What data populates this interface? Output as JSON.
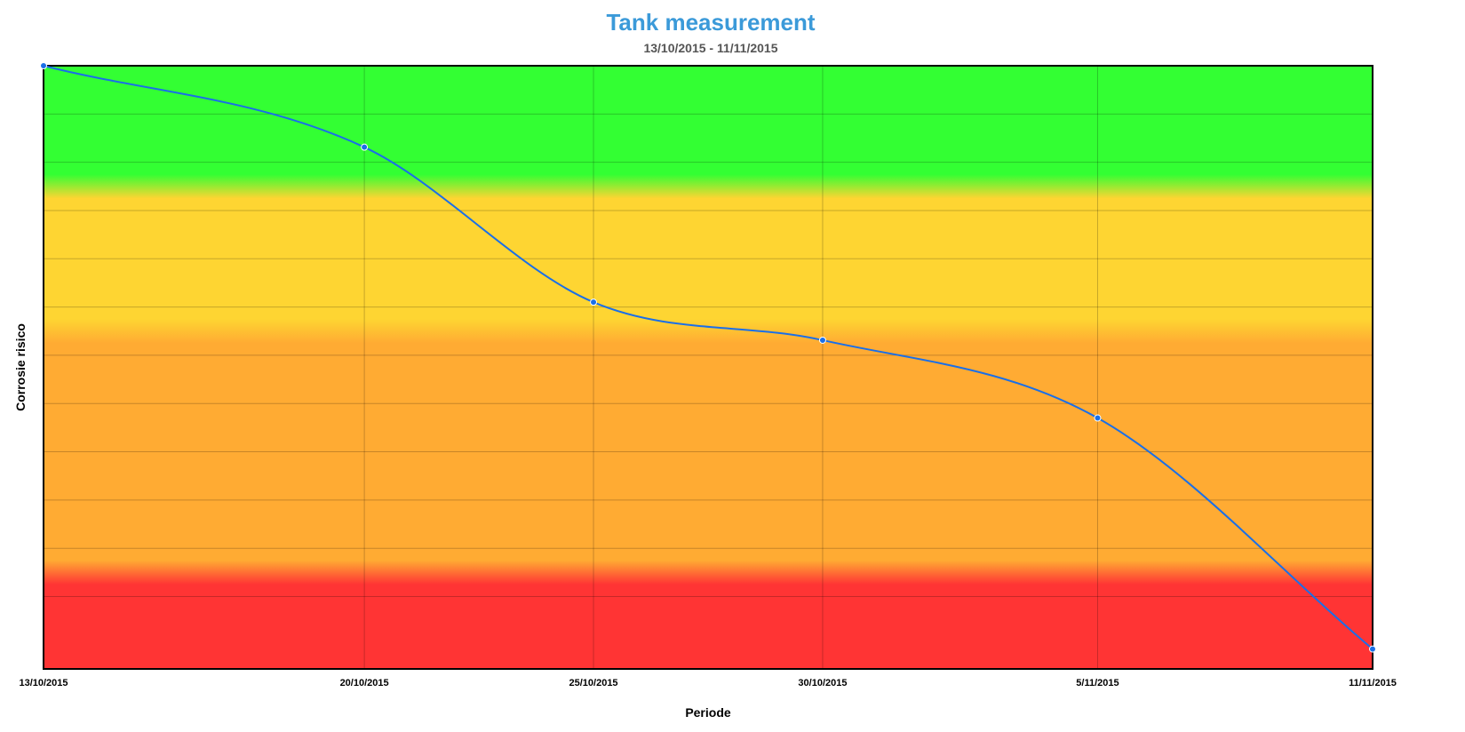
{
  "chart_data": {
    "type": "line",
    "title": "Tank measurement",
    "subtitle": "13/10/2015 - 11/11/2015",
    "xlabel": "Periode",
    "ylabel": "Corrosie risico",
    "x_tick_labels": [
      "13/10/2015",
      "20/10/2015",
      "25/10/2015",
      "30/10/2015",
      "5/11/2015",
      "11/11/2015"
    ],
    "xlim": [
      "13/10/2015",
      "11/11/2015"
    ],
    "ylim": [
      0,
      100
    ],
    "y_tick_labels_shown": false,
    "grid": true,
    "legend": "none",
    "series": [
      {
        "color": "#1a6fe8",
        "smooth": true,
        "points": [
          {
            "x": "13/10/2015",
            "y": 100
          },
          {
            "x": "20/10/2015",
            "y": 86.5
          },
          {
            "x": "25/10/2015",
            "y": 60.8
          },
          {
            "x": "30/10/2015",
            "y": 54.5
          },
          {
            "x": "5/11/2015",
            "y": 41.6
          },
          {
            "x": "11/11/2015",
            "y": 3.3
          }
        ]
      }
    ],
    "bands": [
      {
        "from": 80,
        "to": 100,
        "color": "#33ff33"
      },
      {
        "from": 56,
        "to": 80,
        "color": "#fed532"
      },
      {
        "from": 16,
        "to": 56,
        "color": "#ffab33"
      },
      {
        "from": 0,
        "to": 16,
        "color": "#ff3434"
      }
    ],
    "colors": {
      "title": "#3b9ad9",
      "axis": "#000000",
      "line": "#1a6fe8"
    }
  }
}
